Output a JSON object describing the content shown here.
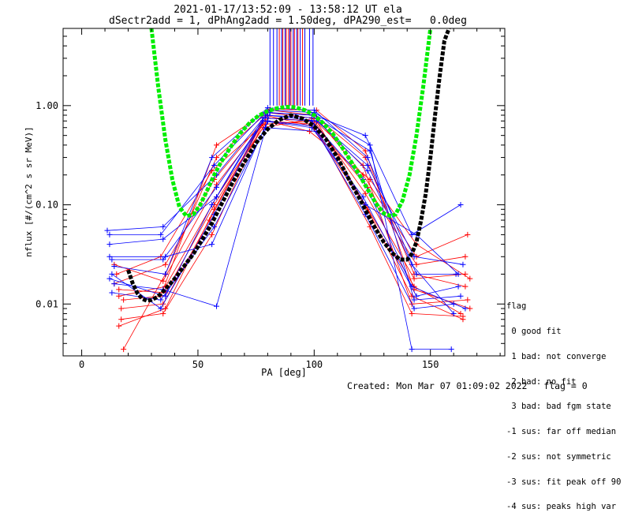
{
  "chart_data": {
    "type": "scatter",
    "title": "2021-01-17/13:52:09 - 13:58:12 UT ela",
    "subtitle": "dSectr2add = 1, dPhAng2add = 1.50deg, dPA290_est=   0.0deg",
    "xlabel": "PA [deg]",
    "ylabel": "nflux [#/(cm^2 s sr MeV)]",
    "xlim": [
      -8,
      182
    ],
    "ylim": [
      0.003,
      6.0
    ],
    "yscale": "log",
    "x_ticks": [
      0,
      50,
      100,
      150
    ],
    "x_tick_labels": [
      "0",
      "50",
      "100",
      "150"
    ],
    "y_ticks": [
      0.01,
      0.1,
      1.0
    ],
    "y_tick_labels": [
      "0.01",
      "0.10",
      "1.00"
    ],
    "colors": {
      "red": "#ff0000",
      "blue": "#0000ff",
      "green": "#00ee00",
      "black": "#000000"
    },
    "series": [
      {
        "color": "green",
        "style": "thick-dashed",
        "x": [
          30,
          33,
          36,
          39,
          42,
          45,
          48,
          51,
          54,
          57,
          60,
          64,
          68,
          72,
          76,
          80,
          84,
          88,
          90,
          92,
          96,
          100,
          104,
          108,
          112,
          116,
          120,
          124,
          127,
          130,
          133,
          135,
          138,
          141,
          144,
          147,
          150
        ],
        "y": [
          6.0,
          1.5,
          0.45,
          0.18,
          0.095,
          0.077,
          0.08,
          0.1,
          0.14,
          0.2,
          0.27,
          0.38,
          0.52,
          0.66,
          0.79,
          0.88,
          0.94,
          0.97,
          0.97,
          0.96,
          0.9,
          0.8,
          0.66,
          0.52,
          0.38,
          0.27,
          0.19,
          0.13,
          0.1,
          0.082,
          0.077,
          0.08,
          0.11,
          0.2,
          0.5,
          1.6,
          6.0
        ]
      },
      {
        "color": "black",
        "style": "thick-dashed",
        "x": [
          20,
          22,
          24,
          26,
          28,
          30,
          32,
          34,
          37,
          40,
          44,
          48,
          52,
          56,
          60,
          65,
          70,
          75,
          80,
          85,
          90,
          95,
          100,
          105,
          110,
          115,
          120,
          125,
          130,
          134,
          137,
          140,
          142,
          144,
          146,
          148,
          150,
          152,
          154,
          156,
          158
        ],
        "y": [
          0.022,
          0.016,
          0.0128,
          0.0113,
          0.0108,
          0.011,
          0.0116,
          0.0126,
          0.015,
          0.018,
          0.024,
          0.032,
          0.045,
          0.065,
          0.1,
          0.17,
          0.27,
          0.42,
          0.58,
          0.72,
          0.8,
          0.74,
          0.62,
          0.46,
          0.3,
          0.18,
          0.11,
          0.065,
          0.042,
          0.032,
          0.028,
          0.028,
          0.032,
          0.042,
          0.07,
          0.13,
          0.3,
          0.8,
          2.0,
          4.5,
          6.0
        ]
      }
    ],
    "measurements": {
      "red": [
        [
          [
            14,
            0.025
          ],
          [
            35,
            0.017
          ],
          [
            58,
            0.16
          ],
          [
            80,
            0.75
          ],
          [
            100,
            0.7
          ],
          [
            122,
            0.13
          ],
          [
            143,
            0.018
          ],
          [
            165,
            0.02
          ]
        ],
        [
          [
            16,
            0.014
          ],
          [
            36,
            0.013
          ],
          [
            57,
            0.1
          ],
          [
            78,
            0.6
          ],
          [
            101,
            0.75
          ],
          [
            121,
            0.2
          ],
          [
            144,
            0.03
          ],
          [
            166,
            0.05
          ]
        ],
        [
          [
            17,
            0.009
          ],
          [
            35,
            0.01
          ],
          [
            55,
            0.07
          ],
          [
            79,
            0.8
          ],
          [
            99,
            0.62
          ],
          [
            123,
            0.09
          ],
          [
            142,
            0.012
          ],
          [
            164,
            0.007
          ]
        ],
        [
          [
            18,
            0.0035
          ],
          [
            36,
            0.02
          ],
          [
            58,
            0.3
          ],
          [
            81,
            0.9
          ],
          [
            100,
            0.8
          ],
          [
            122,
            0.3
          ],
          [
            143,
            0.02
          ],
          [
            165,
            0.015
          ]
        ],
        [
          [
            15,
            0.02
          ],
          [
            34,
            0.03
          ],
          [
            56,
            0.22
          ],
          [
            80,
            0.7
          ],
          [
            98,
            0.55
          ],
          [
            124,
            0.18
          ],
          [
            144,
            0.04
          ],
          [
            167,
            0.018
          ]
        ],
        [
          [
            16,
            0.012
          ],
          [
            36,
            0.015
          ],
          [
            58,
            0.12
          ],
          [
            79,
            0.65
          ],
          [
            101,
            0.7
          ],
          [
            122,
            0.1
          ],
          [
            143,
            0.015
          ],
          [
            163,
            0.008
          ]
        ],
        [
          [
            17,
            0.007
          ],
          [
            35,
            0.008
          ],
          [
            56,
            0.05
          ],
          [
            80,
            0.85
          ],
          [
            99,
            0.75
          ],
          [
            121,
            0.25
          ],
          [
            142,
            0.01
          ],
          [
            166,
            0.011
          ]
        ],
        [
          [
            14,
            0.016
          ],
          [
            36,
            0.025
          ],
          [
            57,
            0.18
          ],
          [
            78,
            0.7
          ],
          [
            100,
            0.65
          ],
          [
            123,
            0.15
          ],
          [
            144,
            0.025
          ],
          [
            165,
            0.03
          ]
        ],
        [
          [
            18,
            0.011
          ],
          [
            34,
            0.012
          ],
          [
            58,
            0.4
          ],
          [
            81,
            0.92
          ],
          [
            101,
            0.9
          ],
          [
            122,
            0.35
          ],
          [
            143,
            0.014
          ],
          [
            167,
            0.009
          ]
        ],
        [
          [
            16,
            0.006
          ],
          [
            36,
            0.009
          ],
          [
            57,
            0.09
          ],
          [
            79,
            0.75
          ],
          [
            99,
            0.7
          ],
          [
            124,
            0.06
          ],
          [
            142,
            0.008
          ],
          [
            164,
            0.0075
          ]
        ]
      ],
      "blue": [
        [
          [
            12,
            0.05
          ],
          [
            34,
            0.05
          ],
          [
            57,
            0.25
          ],
          [
            79,
            0.85
          ],
          [
            100,
            0.8
          ],
          [
            122,
            0.5
          ],
          [
            142,
            0.05
          ],
          [
            163,
            0.1
          ]
        ],
        [
          [
            13,
            0.028
          ],
          [
            35,
            0.028
          ],
          [
            58,
            0.15
          ],
          [
            80,
            0.8
          ],
          [
            101,
            0.7
          ],
          [
            123,
            0.25
          ],
          [
            143,
            0.03
          ],
          [
            164,
            0.025
          ]
        ],
        [
          [
            12,
            0.018
          ],
          [
            36,
            0.012
          ],
          [
            56,
            0.1
          ],
          [
            78,
            0.7
          ],
          [
            99,
            0.6
          ],
          [
            121,
            0.12
          ],
          [
            144,
            0.012
          ],
          [
            162,
            0.015
          ]
        ],
        [
          [
            11,
            0.055
          ],
          [
            35,
            0.06
          ],
          [
            58,
            0.2
          ],
          [
            81,
            0.9
          ],
          [
            100,
            0.85
          ],
          [
            124,
            0.4
          ],
          [
            142,
            0.0035
          ],
          [
            159,
            0.0035
          ]
        ],
        [
          [
            13,
            0.013
          ],
          [
            34,
            0.011
          ],
          [
            57,
            0.06
          ],
          [
            79,
            0.6
          ],
          [
            101,
            0.55
          ],
          [
            122,
            0.08
          ],
          [
            143,
            0.009
          ],
          [
            160,
            0.01
          ]
        ],
        [
          [
            14,
            0.024
          ],
          [
            36,
            0.02
          ],
          [
            56,
            0.3
          ],
          [
            80,
            0.95
          ],
          [
            100,
            0.9
          ],
          [
            123,
            0.3
          ],
          [
            144,
            0.02
          ],
          [
            161,
            0.02
          ]
        ],
        [
          [
            12,
            0.04
          ],
          [
            35,
            0.045
          ],
          [
            58,
            0.12
          ],
          [
            78,
            0.75
          ],
          [
            99,
            0.7
          ],
          [
            121,
            0.18
          ],
          [
            142,
            0.015
          ],
          [
            165,
            0.009
          ]
        ],
        [
          [
            13,
            0.02
          ],
          [
            34,
            0.009
          ],
          [
            57,
            0.08
          ],
          [
            79,
            0.8
          ],
          [
            101,
            0.75
          ],
          [
            124,
            0.35
          ],
          [
            143,
            0.011
          ],
          [
            163,
            0.012
          ]
        ],
        [
          [
            12,
            0.03
          ],
          [
            36,
            0.03
          ],
          [
            56,
            0.04
          ],
          [
            80,
            0.7
          ],
          [
            100,
            0.62
          ],
          [
            122,
            0.1
          ],
          [
            144,
            0.05
          ],
          [
            162,
            0.02
          ]
        ],
        [
          [
            14,
            0.016
          ],
          [
            35,
            0.014
          ],
          [
            58,
            0.0095
          ],
          [
            81,
            0.85
          ],
          [
            99,
            0.8
          ],
          [
            123,
            0.22
          ],
          [
            142,
            0.025
          ],
          [
            160,
            0.008
          ]
        ]
      ]
    },
    "vlines": {
      "red": [
        85,
        86.5,
        88,
        89,
        90,
        91.5,
        93,
        95
      ],
      "blue": [
        81,
        82.5,
        84,
        86,
        87.5,
        89.5,
        91,
        92.5,
        94,
        96,
        98,
        99.5
      ]
    }
  },
  "legend": {
    "title": "flag",
    "entries": [
      " 0 good fit",
      " 1 bad: not converge",
      " 2 bad: no fit",
      " 3 bad: bad fgm state",
      "-1 sus: far off median",
      "-2 sus: not symmetric",
      "-3 sus: fit peak off 90",
      "-4 sus: peaks high var"
    ]
  },
  "footer": {
    "created": "Created: Mon Mar 07 01:09:02 2022",
    "flag": "flag = 0"
  }
}
